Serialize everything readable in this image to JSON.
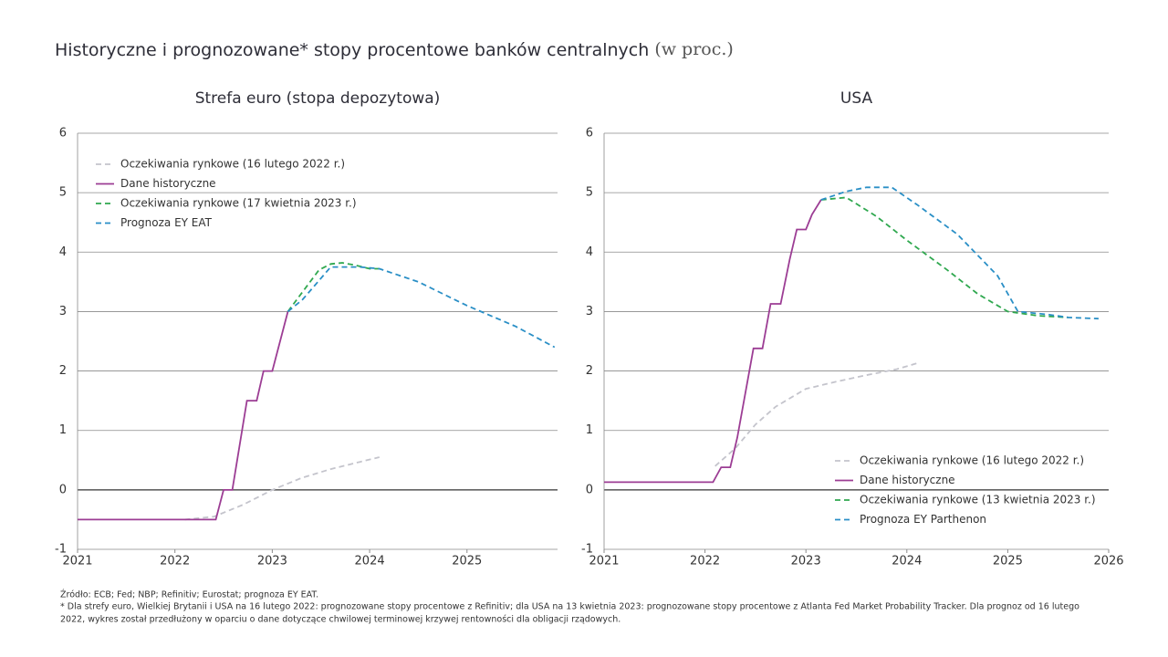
{
  "title": "Historyczne i prognozowane* stopy procentowe banków centralnych",
  "title_unit": "(w proc.)",
  "chart_data": [
    {
      "type": "line",
      "title": "Strefa euro (stopa depozytowa)",
      "xlim": [
        2021,
        2025.93
      ],
      "xticks": [
        2021,
        2022,
        2023,
        2024,
        2025
      ],
      "ylim": [
        -1,
        6
      ],
      "yticks": [
        -1,
        0,
        1,
        2,
        3,
        4,
        5,
        6
      ],
      "grid": true,
      "legend": "upper left",
      "series": [
        {
          "name": "Oczekiwania  rynkowe (16 lutego  2022 r.)",
          "color": "#c4c4cc",
          "linestyle": "dashed",
          "x": [
            2022.1,
            2022.4,
            2022.7,
            2023.0,
            2023.3,
            2023.6,
            2023.9,
            2024.1
          ],
          "values": [
            -0.5,
            -0.45,
            -0.25,
            0.0,
            0.2,
            0.35,
            0.47,
            0.55
          ]
        },
        {
          "name": "Dane historyczne",
          "color": "#9c3d94",
          "linestyle": "solid",
          "x": [
            2021,
            2022.42,
            2022.5,
            2022.59,
            2022.74,
            2022.84,
            2022.91,
            2023.0,
            2023.16
          ],
          "values": [
            -0.5,
            -0.5,
            0,
            0,
            1.5,
            1.5,
            2,
            2,
            3
          ]
        },
        {
          "name": "Oczekiwania  rynkowe (17 kwietnia  2023 r.)",
          "color": "#2fa84f",
          "linestyle": "dashed",
          "x": [
            2023.16,
            2023.48,
            2023.6,
            2023.72,
            2023.85,
            2024.0,
            2024.1
          ],
          "values": [
            3,
            3.7,
            3.8,
            3.82,
            3.78,
            3.72,
            3.72
          ]
        },
        {
          "name": "Prognoza  EY EAT",
          "color": "#2a8fc6",
          "linestyle": "dashed",
          "x": [
            2023.16,
            2023.31,
            2023.6,
            2023.9,
            2024.1,
            2024.5,
            2025.0,
            2025.5,
            2025.9
          ],
          "values": [
            3,
            3.2,
            3.75,
            3.75,
            3.72,
            3.5,
            3.1,
            2.75,
            2.4
          ]
        }
      ]
    },
    {
      "type": "line",
      "title": "USA",
      "xlim": [
        2021,
        2026
      ],
      "xticks": [
        2021,
        2022,
        2023,
        2024,
        2025,
        2026
      ],
      "ylim": [
        -1,
        6
      ],
      "yticks": [
        -1,
        0,
        1,
        2,
        3,
        4,
        5,
        6
      ],
      "grid": true,
      "legend": "lower right",
      "series": [
        {
          "name": "Oczekiwania  rynkowe (16 lutego  2022 r.)",
          "color": "#c4c4cc",
          "linestyle": "dashed",
          "x": [
            2022.1,
            2022.3,
            2022.5,
            2022.7,
            2023.0,
            2023.3,
            2023.6,
            2023.9,
            2024.1
          ],
          "values": [
            0.4,
            0.7,
            1.1,
            1.4,
            1.7,
            1.82,
            1.93,
            2.03,
            2.13
          ]
        },
        {
          "name": "Dane historyczne",
          "color": "#9c3d94",
          "linestyle": "solid",
          "x": [
            2021,
            2022.08,
            2022.16,
            2022.25,
            2022.32,
            2022.48,
            2022.57,
            2022.65,
            2022.75,
            2022.84,
            2022.91,
            2023.0,
            2023.06,
            2023.15
          ],
          "values": [
            0.13,
            0.13,
            0.38,
            0.38,
            0.88,
            2.38,
            2.38,
            3.13,
            3.13,
            3.88,
            4.38,
            4.38,
            4.63,
            4.88
          ]
        },
        {
          "name": "Oczekiwania  rynkowe (13 kwietnia  2023 r.)",
          "color": "#2fa84f",
          "linestyle": "dashed",
          "x": [
            2023.15,
            2023.4,
            2023.7,
            2024.0,
            2024.4,
            2024.7,
            2025.0,
            2025.3,
            2025.6
          ],
          "values": [
            4.88,
            4.92,
            4.6,
            4.2,
            3.7,
            3.3,
            3.0,
            2.93,
            2.9
          ]
        },
        {
          "name": "Prognoza  EY Parthenon",
          "color": "#2a8fc6",
          "linestyle": "dashed",
          "x": [
            2023.15,
            2023.4,
            2023.6,
            2023.85,
            2024.1,
            2024.5,
            2024.9,
            2025.1,
            2025.4,
            2025.6,
            2025.9
          ],
          "values": [
            4.88,
            5.02,
            5.09,
            5.09,
            4.8,
            4.3,
            3.6,
            3.0,
            2.95,
            2.9,
            2.88
          ]
        }
      ]
    }
  ],
  "source": "Źródło: ECB; Fed; NBP; Refinitiv; Eurostat; prognoza EY EAT.",
  "footnote": [
    "* Dla strefy euro, Wielkiej Brytanii i USA na 16 lutego 2022: prognozowane stopy procentowe z Refinitiv; dla USA na 13 kwietnia 2023: prognozowane stopy procentowe z Atlanta Fed Market Probability Tracker. Dla prognoz od 16 lutego",
    "2022, wykres został przedłużony  w oparciu o dane dotyczące chwilowej terminowej krzywej rentowności dla obligacji rządowych."
  ]
}
